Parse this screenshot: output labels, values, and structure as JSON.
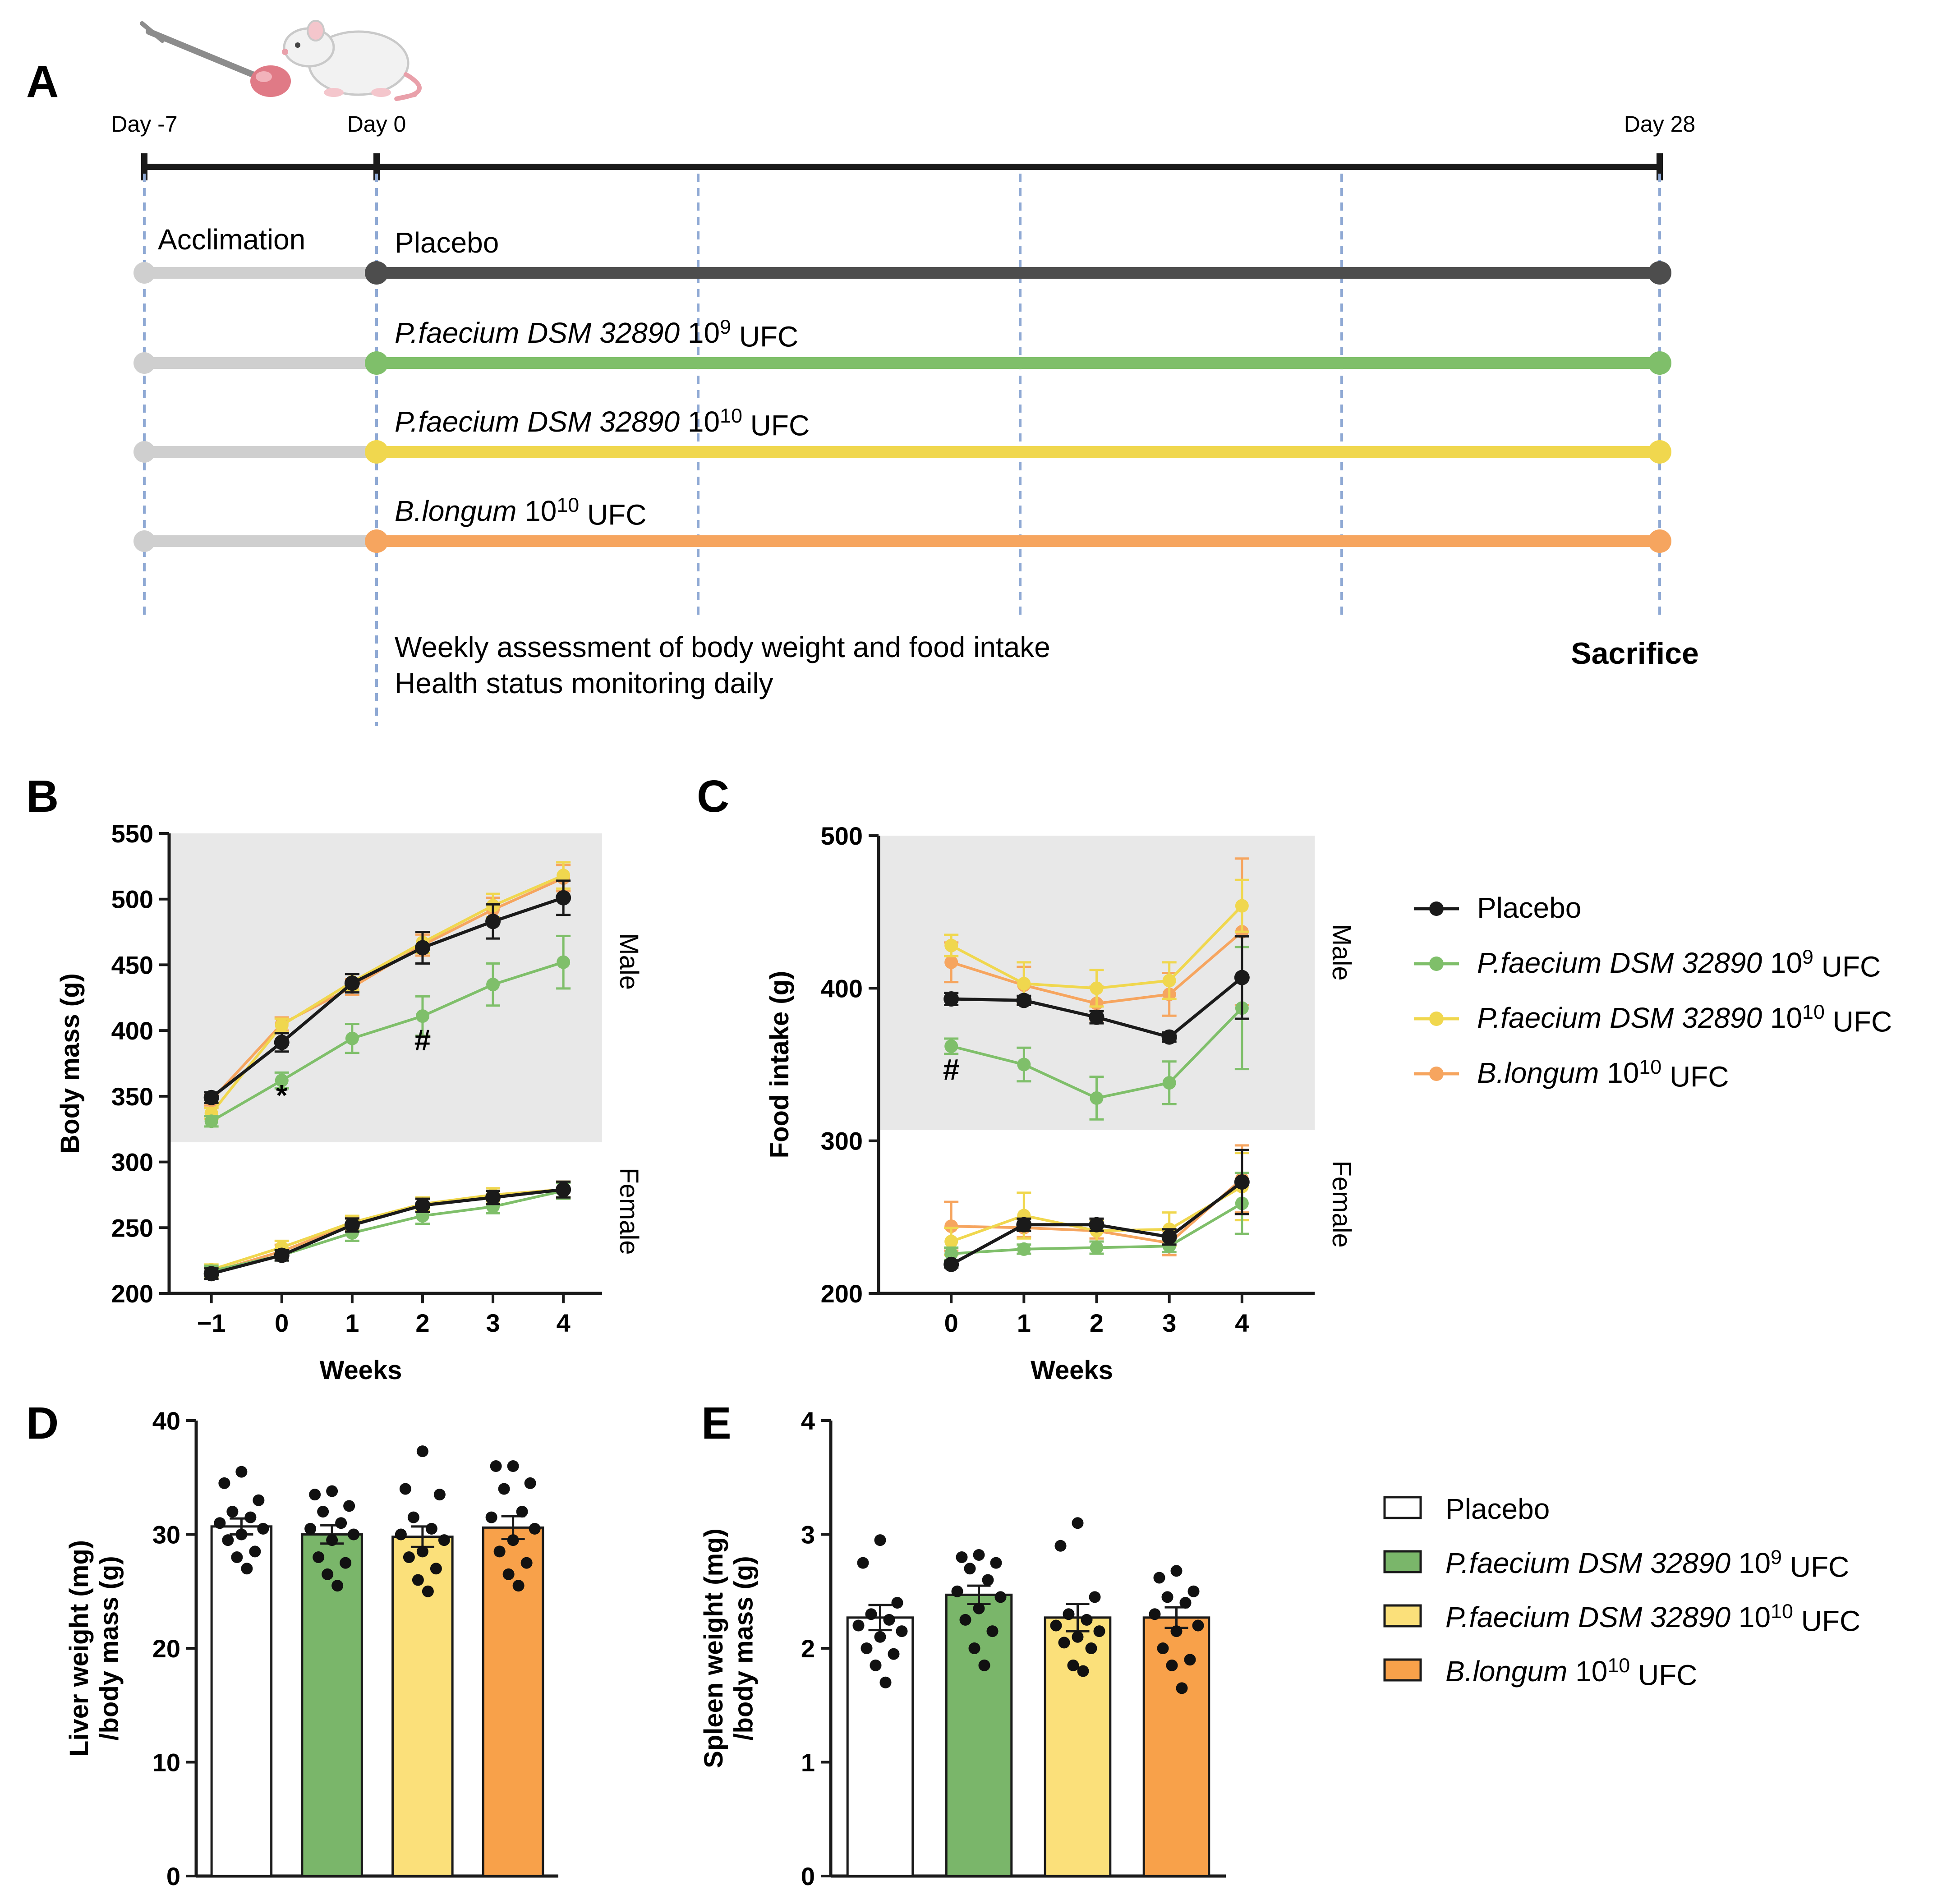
{
  "colors": {
    "placebo": "#1a1a1a",
    "placebo_timeline": "#4d4d4d",
    "pf9": "#7fbf6a",
    "pf10": "#f0d74e",
    "bl10": "#f6a55f",
    "acclimation": "#cfcfcf",
    "shade": "#e8e8e8",
    "vline": "#8fa9d4",
    "bar_pf9": "#7ab66a",
    "bar_pf10": "#fbe07a",
    "bar_bl10": "#f8a14a"
  },
  "panel_a": {
    "label": "A",
    "day_labels": [
      "Day -7",
      "Day 0",
      "Day 28"
    ],
    "acclimation_label": "Acclimation",
    "rows": [
      {
        "name": "Placebo",
        "italic": "",
        "plain": "Placebo",
        "exp": "",
        "unit": ""
      },
      {
        "name": "P.faecium DSM 32890 10^9 UFC",
        "italic": "P.faecium DSM 32890",
        "plain": " 10",
        "exp": "9",
        "unit": "UFC"
      },
      {
        "name": "P.faecium DSM 32890 10^10 UFC",
        "italic": "P.faecium DSM 32890",
        "plain": " 10",
        "exp": "10",
        "unit": "UFC"
      },
      {
        "name": "B.longum 10^10 UFC",
        "italic": "B.longum",
        "plain": "  10",
        "exp": "10",
        "unit": "UFC"
      }
    ],
    "note_line1": "Weekly assessment of body weight and food intake",
    "note_line2": "Health status monitoring daily",
    "sacrifice_label": "Sacrifice",
    "icons": [
      "syringe-icon",
      "rat-icon"
    ]
  },
  "legend_groups": [
    {
      "key": "placebo",
      "italic": "",
      "plain": "Placebo",
      "exp": "",
      "unit": ""
    },
    {
      "key": "pf9",
      "italic": "P.faecium DSM 32890",
      "plain": " 10",
      "exp": "9",
      "unit": " UFC"
    },
    {
      "key": "pf10",
      "italic": "P.faecium DSM 32890",
      "plain": " 10",
      "exp": "10",
      "unit": " UFC"
    },
    {
      "key": "bl10",
      "italic": "B.longum",
      "plain": " 10",
      "exp": "10",
      "unit": " UFC"
    }
  ],
  "chart_data": [
    {
      "panel": "B",
      "type": "line",
      "title": "",
      "xlabel": "Weeks",
      "ylabel": "Body mass (g)",
      "x": [
        -1,
        0,
        1,
        2,
        3,
        4
      ],
      "xticks": [
        "−1",
        "0",
        "1",
        "2",
        "3",
        "4"
      ],
      "ylim": [
        200,
        550
      ],
      "yticks": [
        200,
        250,
        300,
        350,
        400,
        450,
        500,
        550
      ],
      "shaded_region": {
        "label": "Male",
        "ymin": 315,
        "ymax": 550
      },
      "unshaded_label": "Female",
      "annotations": [
        {
          "text": "*",
          "x": 0,
          "y": 343
        },
        {
          "text": "#",
          "x": 2,
          "y": 385
        }
      ],
      "series": [
        {
          "name": "Placebo",
          "key": "placebo",
          "sex": "Male",
          "values": [
            349,
            391,
            436,
            463,
            483,
            501
          ],
          "err": [
            4,
            7,
            7,
            12,
            13,
            13
          ]
        },
        {
          "name": "P.faecium DSM 32890 10^9 UFC",
          "key": "pf9",
          "sex": "Male",
          "values": [
            331,
            362,
            394,
            411,
            435,
            452
          ],
          "err": [
            4,
            6,
            11,
            15,
            16,
            20
          ]
        },
        {
          "name": "P.faecium DSM 32890 10^10 UFC",
          "key": "pf10",
          "sex": "Male",
          "values": [
            337,
            404,
            437,
            467,
            495,
            518
          ],
          "err": [
            4,
            5,
            6,
            8,
            9,
            10
          ]
        },
        {
          "name": "B.longum 10^10 UFC",
          "key": "bl10",
          "sex": "Male",
          "values": [
            347,
            405,
            433,
            465,
            492,
            516
          ],
          "err": [
            4,
            5,
            6,
            8,
            9,
            10
          ]
        },
        {
          "name": "Placebo",
          "key": "placebo",
          "sex": "Female",
          "values": [
            215,
            229,
            252,
            267,
            273,
            279
          ],
          "err": [
            4,
            4,
            5,
            5,
            5,
            6
          ]
        },
        {
          "name": "P.faecium DSM 32890 10^9 UFC",
          "key": "pf9",
          "sex": "Female",
          "values": [
            217,
            229,
            246,
            259,
            266,
            278
          ],
          "err": [
            4,
            4,
            6,
            6,
            5,
            6
          ]
        },
        {
          "name": "P.faecium DSM 32890 10^10 UFC",
          "key": "pf10",
          "sex": "Female",
          "values": [
            218,
            235,
            254,
            268,
            275,
            279
          ],
          "err": [
            4,
            5,
            5,
            5,
            5,
            6
          ]
        },
        {
          "name": "B.longum 10^10 UFC",
          "key": "bl10",
          "sex": "Female",
          "values": [
            216,
            232,
            253,
            267,
            275,
            279
          ],
          "err": [
            4,
            5,
            5,
            5,
            5,
            6
          ]
        }
      ]
    },
    {
      "panel": "C",
      "type": "line",
      "title": "",
      "xlabel": "Weeks",
      "ylabel": "Food intake (g)",
      "x": [
        0,
        1,
        2,
        3,
        4
      ],
      "xticks": [
        "0",
        "1",
        "2",
        "3",
        "4"
      ],
      "xlim": [
        -1,
        5
      ],
      "ylim": [
        200,
        500
      ],
      "yticks": [
        200,
        300,
        400,
        500
      ],
      "shaded_region": {
        "label": "Male",
        "ymin": 307,
        "ymax": 500
      },
      "unshaded_label": "Female",
      "annotations": [
        {
          "text": "#",
          "x": 0,
          "y": 340
        }
      ],
      "series": [
        {
          "name": "Placebo",
          "key": "placebo",
          "sex": "Male",
          "values": [
            393,
            392,
            381,
            368,
            407
          ],
          "err": [
            4,
            3,
            4,
            3,
            27
          ]
        },
        {
          "name": "P.faecium DSM 32890 10^9 UFC",
          "key": "pf9",
          "sex": "Male",
          "values": [
            362,
            350,
            328,
            338,
            387
          ],
          "err": [
            5,
            11,
            14,
            14,
            40
          ]
        },
        {
          "name": "P.faecium DSM 32890 10^10 UFC",
          "key": "pf10",
          "sex": "Male",
          "values": [
            428,
            403,
            400,
            405,
            454
          ],
          "err": [
            7,
            14,
            12,
            12,
            17
          ]
        },
        {
          "name": "B.longum 10^10 UFC",
          "key": "bl10",
          "sex": "Male",
          "values": [
            417,
            402,
            390,
            396,
            437
          ],
          "err": [
            13,
            12,
            11,
            14,
            48
          ]
        },
        {
          "name": "Placebo",
          "key": "placebo",
          "sex": "Female",
          "values": [
            219,
            245,
            245,
            237,
            273
          ],
          "err": [
            2,
            4,
            4,
            5,
            21
          ]
        },
        {
          "name": "P.faecium DSM 32890 10^9 UFC",
          "key": "pf9",
          "sex": "Female",
          "values": [
            226,
            229,
            230,
            231,
            259
          ],
          "err": [
            4,
            3,
            4,
            4,
            20
          ]
        },
        {
          "name": "P.faecium DSM 32890 10^10 UFC",
          "key": "pf10",
          "sex": "Female",
          "values": [
            234,
            251,
            241,
            242,
            270
          ],
          "err": [
            9,
            15,
            7,
            11,
            22
          ]
        },
        {
          "name": "B.longum 10^10 UFC",
          "key": "bl10",
          "sex": "Female",
          "values": [
            244,
            243,
            241,
            233,
            275
          ],
          "err": [
            16,
            6,
            5,
            8,
            22
          ]
        }
      ]
    },
    {
      "panel": "D",
      "type": "bar",
      "title": "",
      "xlabel": "",
      "ylabel_line1": "Liver weight (mg)",
      "ylabel_line2": "/body mass (g)",
      "ylim": [
        0,
        40
      ],
      "yticks": [
        0,
        10,
        20,
        30,
        40
      ],
      "categories": [
        "Placebo",
        "P.faecium DSM 32890 10^9 UFC",
        "P.faecium DSM 32890 10^10 UFC",
        "B.longum 10^10 UFC"
      ],
      "keys": [
        "placebo",
        "pf9",
        "pf10",
        "bl10"
      ],
      "values": [
        30.7,
        30.0,
        29.8,
        30.6
      ],
      "err": [
        0.7,
        0.8,
        0.9,
        1.0
      ],
      "points": [
        [
          35.5,
          34.5,
          33.0,
          32.0,
          31.5,
          31.0,
          30.5,
          30.0,
          29.5,
          28.5,
          28.0,
          27.0
        ],
        [
          33.8,
          33.5,
          32.5,
          32.0,
          31.0,
          30.5,
          30.0,
          29.5,
          28.0,
          27.5,
          26.5,
          25.5
        ],
        [
          37.3,
          34.0,
          33.5,
          31.5,
          30.5,
          30.0,
          29.5,
          28.5,
          28.0,
          27.0,
          26.0,
          25.0
        ],
        [
          36.0,
          36.0,
          34.5,
          34.0,
          32.0,
          31.5,
          30.5,
          29.5,
          28.5,
          27.5,
          26.5,
          25.5
        ]
      ]
    },
    {
      "panel": "E",
      "type": "bar",
      "title": "",
      "xlabel": "",
      "ylabel_line1": "Spleen weight (mg)",
      "ylabel_line2": "/body mass (g)",
      "ylim": [
        0,
        4
      ],
      "yticks": [
        0,
        1,
        2,
        3,
        4
      ],
      "categories": [
        "Placebo",
        "P.faecium DSM 32890 10^9 UFC",
        "P.faecium DSM 32890 10^10 UFC",
        "B.longum 10^10 UFC"
      ],
      "keys": [
        "placebo",
        "pf9",
        "pf10",
        "bl10"
      ],
      "values": [
        2.27,
        2.47,
        2.27,
        2.27
      ],
      "err": [
        0.11,
        0.08,
        0.12,
        0.09
      ],
      "points": [
        [
          2.95,
          2.75,
          2.4,
          2.3,
          2.25,
          2.2,
          2.15,
          2.1,
          2.0,
          1.95,
          1.85,
          1.7
        ],
        [
          2.82,
          2.8,
          2.75,
          2.7,
          2.6,
          2.5,
          2.45,
          2.35,
          2.25,
          2.15,
          2.0,
          1.85
        ],
        [
          3.1,
          2.9,
          2.45,
          2.3,
          2.25,
          2.2,
          2.15,
          2.1,
          2.05,
          2.0,
          1.85,
          1.8
        ],
        [
          2.68,
          2.62,
          2.5,
          2.45,
          2.4,
          2.3,
          2.2,
          2.15,
          2.0,
          1.9,
          1.85,
          1.65
        ]
      ]
    }
  ]
}
